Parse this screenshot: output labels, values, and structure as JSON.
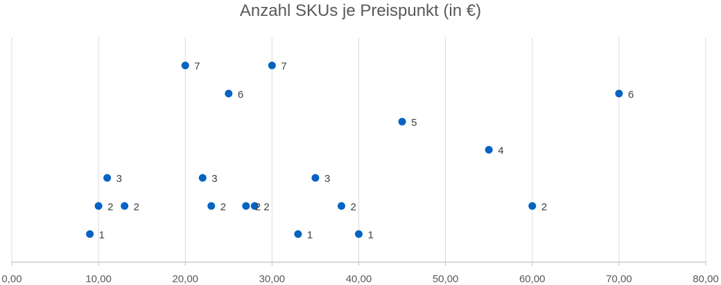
{
  "chart_data": {
    "type": "scatter",
    "title": "Anzahl SKUs je Preispunkt (in €)",
    "xlabel": "",
    "ylabel": "",
    "xlim": [
      0,
      80
    ],
    "ylim": [
      0,
      8
    ],
    "x_ticks": [
      "0,00",
      "10,00",
      "20,00",
      "30,00",
      "40,00",
      "50,00",
      "60,00",
      "70,00",
      "80,00"
    ],
    "grid": "vertical",
    "marker_color": "#0563C1",
    "points": [
      {
        "x": 9,
        "y": 1,
        "label": "1"
      },
      {
        "x": 10,
        "y": 2,
        "label": "2"
      },
      {
        "x": 11,
        "y": 3,
        "label": "3"
      },
      {
        "x": 13,
        "y": 2,
        "label": "2"
      },
      {
        "x": 20,
        "y": 7,
        "label": "7"
      },
      {
        "x": 22,
        "y": 3,
        "label": "3"
      },
      {
        "x": 23,
        "y": 2,
        "label": "2"
      },
      {
        "x": 25,
        "y": 6,
        "label": "6"
      },
      {
        "x": 27,
        "y": 2,
        "label": "2"
      },
      {
        "x": 28,
        "y": 2,
        "label": "2"
      },
      {
        "x": 30,
        "y": 7,
        "label": "7"
      },
      {
        "x": 33,
        "y": 1,
        "label": "1"
      },
      {
        "x": 35,
        "y": 3,
        "label": "3"
      },
      {
        "x": 38,
        "y": 2,
        "label": "2"
      },
      {
        "x": 40,
        "y": 1,
        "label": "1"
      },
      {
        "x": 45,
        "y": 5,
        "label": "5"
      },
      {
        "x": 55,
        "y": 4,
        "label": "4"
      },
      {
        "x": 60,
        "y": 2,
        "label": "2"
      },
      {
        "x": 70,
        "y": 6,
        "label": "6"
      }
    ]
  }
}
